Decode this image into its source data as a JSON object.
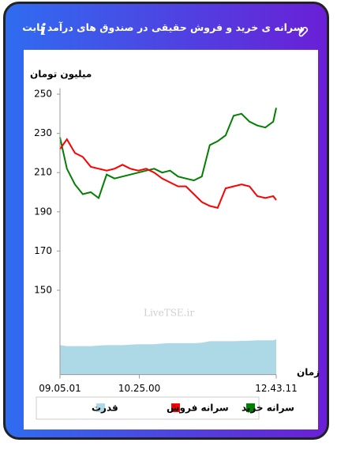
{
  "header": {
    "title": "سرانه ی خرید و فروش حقیقی در صندوق های درآمد ثابت"
  },
  "chart_data": {
    "type": "line",
    "y_label": "میلیون تومان",
    "x_label": "زمان",
    "watermark": "LiveTSE.ir",
    "x": [
      545,
      552,
      560,
      568,
      576,
      584,
      592,
      600,
      608,
      616,
      624,
      632,
      640,
      648,
      656,
      664,
      672,
      680,
      688,
      696,
      704,
      712,
      720,
      728,
      736,
      744,
      752,
      760,
      763
    ],
    "xlim": [
      545,
      763
    ],
    "xticks": [
      {
        "value": 545,
        "label": "09.05.01"
      },
      {
        "value": 625,
        "label": "10.25.00"
      },
      {
        "value": 763,
        "label": "12.43.11"
      }
    ],
    "ylim": [
      107,
      253
    ],
    "yticks": [
      150,
      170,
      190,
      210,
      230,
      250
    ],
    "series": [
      {
        "name": "سرانه خرید",
        "color": "#008000",
        "values": [
          228,
          212,
          204,
          199,
          200,
          197,
          209,
          207,
          208,
          209,
          210,
          211,
          212,
          210,
          211,
          208,
          207,
          206,
          208,
          224,
          226,
          229,
          239,
          240,
          236,
          234,
          233,
          236,
          243
        ]
      },
      {
        "name": "سرانه فروش",
        "color": "#ff0000",
        "values": [
          222,
          227,
          220,
          218,
          213,
          212,
          211,
          212,
          214,
          212,
          211,
          212,
          210,
          207,
          205,
          203,
          203,
          199,
          195,
          193,
          192,
          202,
          203,
          204,
          203,
          198,
          197,
          198,
          196
        ]
      },
      {
        "name": "قدرت",
        "color": "#add8e6",
        "kind": "area",
        "values": [
          122,
          121.5,
          121.5,
          121.5,
          121.5,
          121.8,
          122,
          122,
          122,
          122.3,
          122.5,
          122.5,
          122.5,
          122.8,
          123,
          123,
          123,
          123,
          123.2,
          124,
          124,
          124,
          124,
          124.2,
          124.3,
          124.5,
          124.5,
          124.5,
          125
        ]
      }
    ]
  }
}
